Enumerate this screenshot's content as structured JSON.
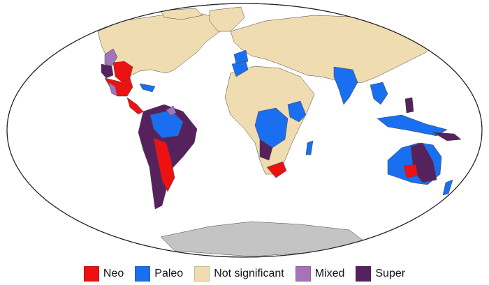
{
  "colors": {
    "neo": "#ee1111",
    "paleo": "#1a6ff0",
    "not_significant": "#efdcb0",
    "mixed": "#a474b8",
    "super": "#56225e",
    "ocean": "#ffffff",
    "antarctica": "#c4c4c4",
    "outline": "#222222",
    "borders": "#555555"
  },
  "legend": [
    {
      "key": "neo",
      "label": "Neo",
      "color": "#ee1111"
    },
    {
      "key": "paleo",
      "label": "Paleo",
      "color": "#1a6ff0"
    },
    {
      "key": "not_significant",
      "label": "Not significant",
      "color": "#efdcb0"
    },
    {
      "key": "mixed",
      "label": "Mixed",
      "color": "#a474b8"
    },
    {
      "key": "super",
      "label": "Super",
      "color": "#56225e"
    }
  ]
}
